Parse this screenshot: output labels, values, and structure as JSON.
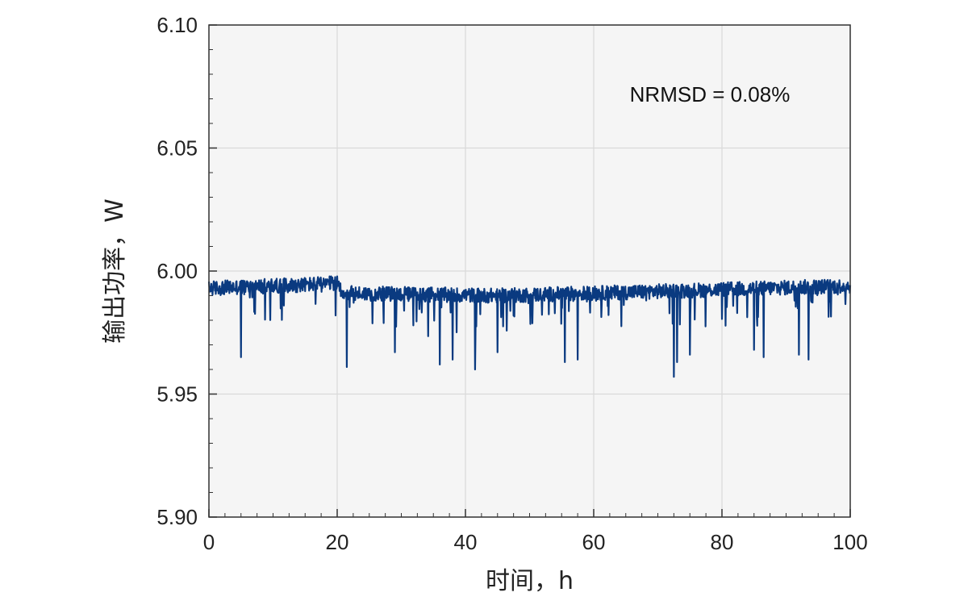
{
  "chart_data": {
    "type": "line",
    "xlabel": "时间，h",
    "ylabel": "输出功率，W",
    "xlim": [
      0,
      100
    ],
    "ylim": [
      5.9,
      6.1
    ],
    "x_ticks": [
      "0",
      "20",
      "40",
      "60",
      "80",
      "100"
    ],
    "y_ticks": [
      "5.90",
      "5.95",
      "6.00",
      "6.05",
      "6.10"
    ],
    "grid": true,
    "annotation": "NRMSD = 0.08%",
    "line_color": "#0a3a80",
    "plot_background": "#f5f5f5",
    "series": [
      {
        "baseline": [
          [
            0,
            5.993
          ],
          [
            20,
            5.995
          ],
          [
            21,
            5.991
          ],
          [
            45,
            5.99
          ],
          [
            60,
            5.991
          ],
          [
            100,
            5.994
          ]
        ],
        "noise_band": 0.003,
        "spikes": [
          [
            5,
            5.965
          ],
          [
            21.5,
            5.961
          ],
          [
            29,
            5.967
          ],
          [
            36,
            5.962
          ],
          [
            38,
            5.964
          ],
          [
            41.5,
            5.96
          ],
          [
            45,
            5.967
          ],
          [
            55.5,
            5.963
          ],
          [
            57.5,
            5.964
          ],
          [
            72.5,
            5.957
          ],
          [
            73,
            5.963
          ],
          [
            75,
            5.966
          ],
          [
            85,
            5.968
          ],
          [
            86.5,
            5.965
          ],
          [
            92,
            5.966
          ],
          [
            93.5,
            5.964
          ]
        ]
      }
    ]
  }
}
